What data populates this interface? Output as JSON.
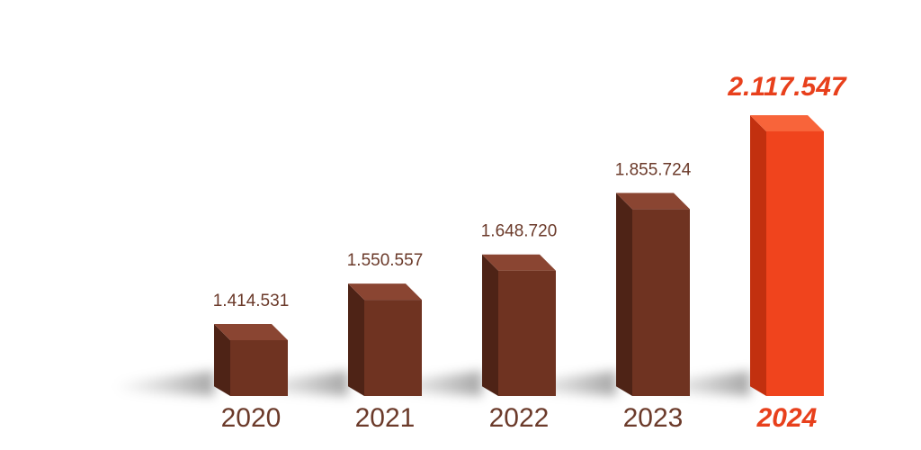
{
  "chart_data": {
    "type": "bar",
    "categories": [
      "2020",
      "2021",
      "2022",
      "2023",
      "2024"
    ],
    "values": [
      1414531,
      1550557,
      1648720,
      1855724,
      2117547
    ],
    "value_labels": [
      "1.414.531",
      "1.550.557",
      "1.648.720",
      "1.855.724",
      "2.117.547"
    ],
    "highlight_index": 4,
    "title": "",
    "xlabel": "",
    "ylabel": "",
    "grid": false,
    "legend": "none",
    "colors": {
      "bar_front": "#6f3321",
      "bar_top": "#8a4532",
      "bar_side": "#4e2316",
      "highlight_front": "#f0441d",
      "highlight_top": "#f8643a",
      "highlight_side": "#c2300f",
      "label": "#6b3a2a",
      "highlight_label": "#e8401c"
    }
  }
}
